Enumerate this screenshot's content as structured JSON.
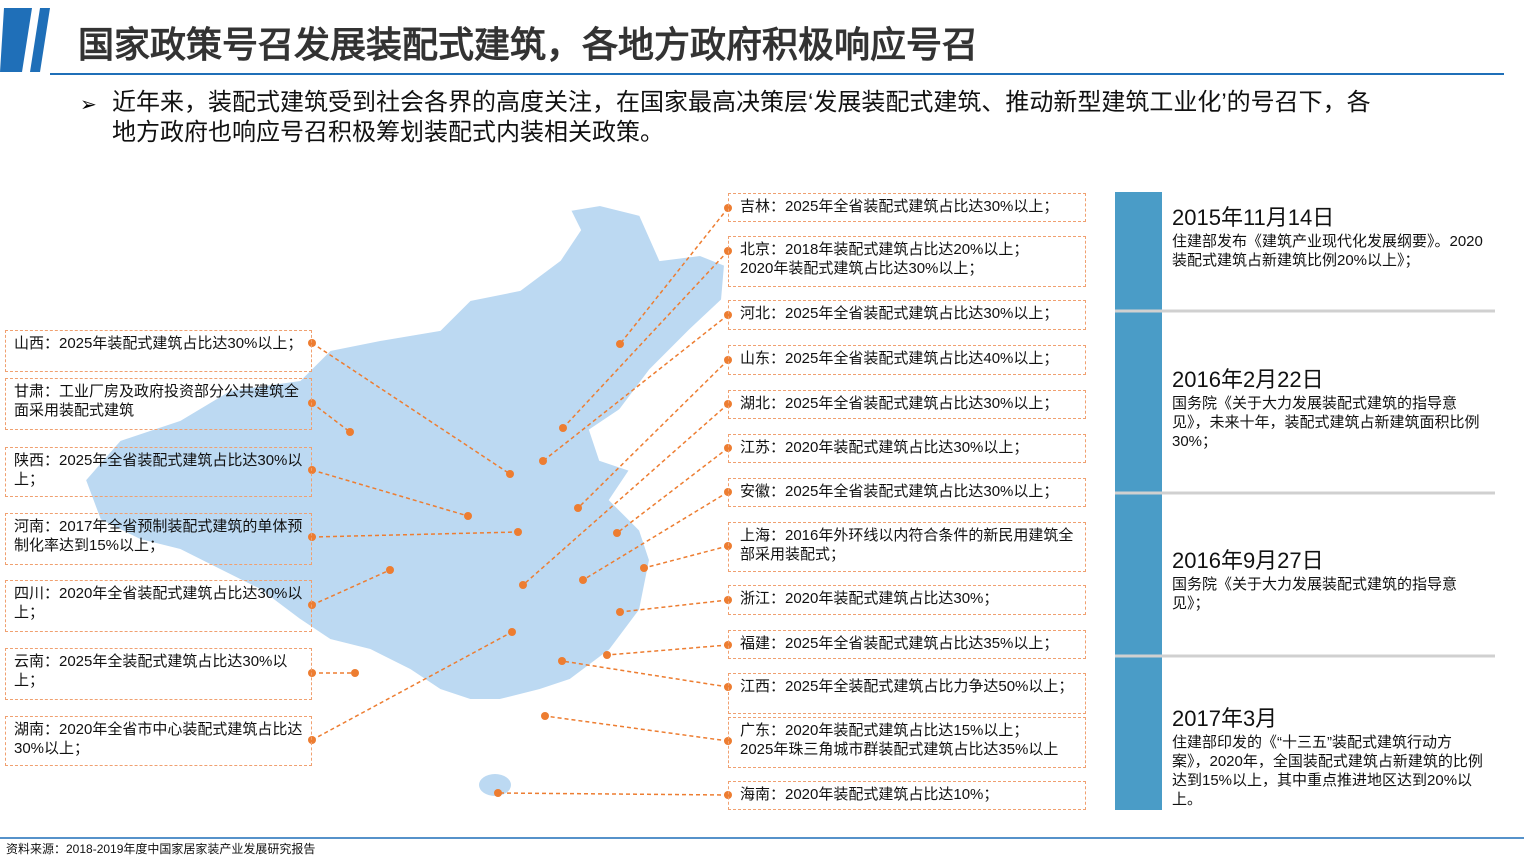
{
  "header": {
    "title": "国家政策号召发展装配式建筑，各地方政府积极响应号召"
  },
  "intro": {
    "lines": [
      "近年来，装配式建筑受到社会各界的高度关注，在国家最高决策层‘发展装配式建筑、推动新型建筑工业化’的号召下，各",
      "地方政府也响应号召积极筹划装配式内装相关政策。"
    ]
  },
  "left_callouts": [
    {
      "lines": [
        "山西：2025年装配式建筑占比达30%以上；"
      ]
    },
    {
      "lines": [
        "甘肃：工业厂房及政府投资部分公共建筑全面采用装配式建筑"
      ]
    },
    {
      "lines": [
        "陕西：2025年全省装配式建筑占比达30%以上；"
      ]
    },
    {
      "lines": [
        "河南：2017年全省预制装配式建筑的单体预制化率达到15%以上；"
      ]
    },
    {
      "lines": [
        "四川：2020年全省装配式建筑占比达30%以上；"
      ]
    },
    {
      "lines": [
        "云南：2025年全装配式建筑占比达30%以上；"
      ]
    },
    {
      "lines": [
        "湖南：2020年全省市中心装配式建筑占比达30%以上；"
      ]
    }
  ],
  "right_callouts": [
    {
      "lines": [
        "吉林：2025年全省装配式建筑占比达30%以上；"
      ]
    },
    {
      "lines": [
        "北京：2018年装配式建筑占比达20%以上；",
        "2020年装配式建筑占比达30%以上；"
      ]
    },
    {
      "lines": [
        "河北：2025年全省装配式建筑占比达30%以上；"
      ]
    },
    {
      "lines": [
        "山东：2025年全省装配式建筑占比达40%以上；"
      ]
    },
    {
      "lines": [
        "湖北：2025年全省装配式建筑占比达30%以上；"
      ]
    },
    {
      "lines": [
        "江苏：2020年装配式建筑占比达30%以上；"
      ]
    },
    {
      "lines": [
        "安徽：2025年全省装配式建筑占比达30%以上；"
      ]
    },
    {
      "lines": [
        "上海：2016年外环线以内符合条件的新民用建筑全部采用装配式；"
      ]
    },
    {
      "lines": [
        "浙江：2020年装配式建筑占比达30%；"
      ]
    },
    {
      "lines": [
        "福建：2025年全省装配式建筑占比达35%以上；"
      ]
    },
    {
      "lines": [
        "江西：2025年全装配式建筑占比力争达50%以上；"
      ]
    },
    {
      "lines": [
        "广东：2020年装配式建筑占比达15%以上；",
        "2025年珠三角城市群装配式建筑占比达35%以上"
      ]
    },
    {
      "lines": [
        "海南：2020年装配式建筑占比达10%；"
      ]
    }
  ],
  "timeline": [
    {
      "date": "2015年11月14日",
      "text": "住建部发布《建筑产业现代化发展纲要》。2020装配式建筑占新建筑比例20%以上》；"
    },
    {
      "date": "2016年2月22日",
      "text": "国务院《关于大力发展装配式建筑的指导意见》，未来十年，装配式建筑占新建筑面积比例30%；"
    },
    {
      "date": "2016年9月27日",
      "text": "国务院《关于大力发展装配式建筑的指导意见》；"
    },
    {
      "date": "2017年3月",
      "text": "住建部印发的《“十三五”装配式建筑行动方案》，2020年，全国装配式建筑占新建筑的比例达到15%以上，其中重点推进地区达到20%以上。"
    }
  ],
  "footer": {
    "source": "资料来源：2018-2019年度中国家居家装产业发展研究报告"
  }
}
